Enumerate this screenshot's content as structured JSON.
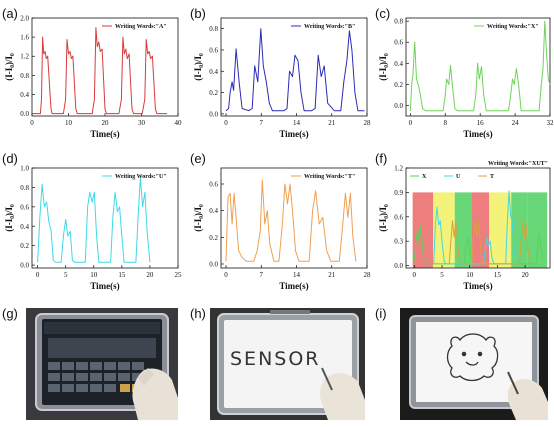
{
  "panel_labels": [
    "(a)",
    "(b)",
    "(c)",
    "(d)",
    "(e)",
    "(f)",
    "(g)",
    "(h)",
    "(i)"
  ],
  "photo_h_text": "SENSOR",
  "chart_data": [
    {
      "type": "line",
      "panel": "(a)",
      "color": "#d93a3a",
      "xlabel": "Time(s)",
      "ylabel": "(I-I₀)/I₀",
      "xlim": [
        0,
        40
      ],
      "ylim": [
        -0.05,
        2.0
      ],
      "xticks": [
        "0",
        "10",
        "20",
        "30",
        "40"
      ],
      "xtick_values": [
        0,
        10,
        20,
        30,
        40
      ],
      "yticks": [
        "0.0",
        "0.4",
        "0.8",
        "1.2",
        "1.6",
        "2.0"
      ],
      "ytick_values": [
        0,
        0.4,
        0.8,
        1.2,
        1.6,
        2.0
      ],
      "series": [
        {
          "name": "Writing Words:\"A\"",
          "x": [
            0,
            2.3,
            2.6,
            2.9,
            3.2,
            3.6,
            3.9,
            4.3,
            5.2,
            5.5,
            8.6,
            9.2,
            9.6,
            10.0,
            10.4,
            10.8,
            11.2,
            12.0,
            12.4,
            16.5,
            17.1,
            17.5,
            17.9,
            18.3,
            18.7,
            19.2,
            20.0,
            20.4,
            23.8,
            24.5,
            24.9,
            25.3,
            25.7,
            26.1,
            26.6,
            27.4,
            27.8,
            30.2,
            30.9,
            31.3,
            31.7,
            32.1,
            32.5,
            33.0,
            33.8,
            34.2,
            37
          ],
          "y": [
            0,
            0,
            0.3,
            1.6,
            1.25,
            1.3,
            1.15,
            1.2,
            0.1,
            0,
            0,
            0.3,
            1.55,
            1.25,
            1.3,
            1.15,
            1.2,
            0.1,
            0,
            0,
            0.3,
            1.8,
            1.4,
            1.5,
            1.3,
            1.35,
            0.1,
            0,
            0,
            0.3,
            1.6,
            1.25,
            1.35,
            1.15,
            1.25,
            0.1,
            0,
            0,
            0.3,
            1.55,
            1.25,
            1.3,
            1.15,
            1.2,
            0.1,
            0,
            0
          ]
        }
      ]
    },
    {
      "type": "line",
      "panel": "(b)",
      "color": "#2b2bb5",
      "xlabel": "Time(s)",
      "ylabel": "(I-I₀)/I₀",
      "xlim": [
        -1,
        28
      ],
      "ylim": [
        -0.02,
        0.9
      ],
      "xticks": [
        "0",
        "7",
        "14",
        "21",
        "28"
      ],
      "xtick_values": [
        0,
        7,
        14,
        21,
        28
      ],
      "yticks": [
        "0.0",
        "0.2",
        "0.4",
        "0.6",
        "0.8"
      ],
      "ytick_values": [
        0,
        0.2,
        0.4,
        0.6,
        0.8
      ],
      "series": [
        {
          "name": "Writing Words:\"B\"",
          "x": [
            0,
            0.5,
            0.8,
            1.2,
            1.5,
            2.0,
            2.6,
            3.2,
            4.5,
            5.2,
            5.7,
            6.3,
            6.9,
            7.4,
            8.0,
            8.6,
            9.2,
            11.5,
            12.1,
            12.6,
            13.2,
            13.7,
            14.3,
            14.9,
            15.5,
            17.0,
            17.7,
            18.3,
            18.9,
            19.5,
            20.2,
            21.5,
            22.8,
            23.4,
            24.0,
            24.5,
            25.0,
            25.6,
            26.2,
            27.5
          ],
          "y": [
            0.03,
            0.05,
            0.2,
            0.3,
            0.22,
            0.61,
            0.3,
            0.05,
            0.03,
            0.05,
            0.45,
            0.3,
            0.8,
            0.45,
            0.3,
            0.1,
            0.03,
            0.03,
            0.05,
            0.4,
            0.35,
            0.55,
            0.5,
            0.2,
            0.03,
            0.03,
            0.05,
            0.55,
            0.35,
            0.45,
            0.1,
            0.03,
            0.03,
            0.3,
            0.5,
            0.78,
            0.6,
            0.2,
            0.03,
            0.03
          ]
        }
      ]
    },
    {
      "type": "line",
      "panel": "(c)",
      "color": "#6fd35a",
      "xlabel": "Time(s)",
      "ylabel": "(I-I₀)/I₀",
      "xlim": [
        -1,
        32
      ],
      "ylim": [
        -0.1,
        0.83
      ],
      "xticks": [
        "0",
        "8",
        "16",
        "24",
        "32"
      ],
      "xtick_values": [
        0,
        8,
        16,
        24,
        32
      ],
      "yticks": [
        "0.0",
        "0.2",
        "0.4",
        "0.6",
        "0.8"
      ],
      "ytick_values": [
        0,
        0.2,
        0.4,
        0.6,
        0.8
      ],
      "series": [
        {
          "name": "Writing Words:\"X\"",
          "x": [
            0,
            0.3,
            0.6,
            1.0,
            1.4,
            1.8,
            2.3,
            2.8,
            3.5,
            7.5,
            8.0,
            8.3,
            8.8,
            9.2,
            9.6,
            10.2,
            10.8,
            14.5,
            15.0,
            15.4,
            15.8,
            16.3,
            16.8,
            17.4,
            22.5,
            23.0,
            23.4,
            23.8,
            24.3,
            24.8,
            25.4,
            29.5,
            30.0,
            30.4,
            30.8,
            31.2,
            31.6,
            32
          ],
          "y": [
            -0.05,
            0.2,
            0.3,
            0.6,
            0.25,
            0.2,
            0.1,
            -0.03,
            -0.05,
            -0.05,
            0.1,
            0.25,
            0.2,
            0.38,
            0.2,
            -0.03,
            -0.05,
            -0.05,
            0.1,
            0.4,
            0.25,
            0.37,
            0.1,
            -0.05,
            -0.05,
            0.1,
            0.25,
            0.2,
            0.35,
            0.2,
            -0.05,
            -0.05,
            0.2,
            0.35,
            0.8,
            0.5,
            0.25,
            0.2
          ]
        }
      ]
    },
    {
      "type": "line",
      "panel": "(d)",
      "color": "#3fd9e6",
      "xlabel": "Time(s)",
      "ylabel": "(I-I₀)/I₀",
      "xlim": [
        -1,
        25
      ],
      "ylim": [
        -0.03,
        1.0
      ],
      "xticks": [
        "0",
        "5",
        "10",
        "15",
        "20",
        "25"
      ],
      "xtick_values": [
        0,
        5,
        10,
        15,
        20,
        25
      ],
      "yticks": [
        "0.0",
        "0.2",
        "0.4",
        "0.6",
        "0.8",
        "1.0"
      ],
      "ytick_values": [
        0,
        0.2,
        0.4,
        0.6,
        0.8,
        1.0
      ],
      "series": [
        {
          "name": "Writing Words:\"U\"",
          "x": [
            0,
            0.4,
            0.8,
            1.2,
            1.6,
            2.0,
            2.4,
            2.8,
            3.2,
            4.2,
            4.6,
            5.0,
            5.4,
            5.8,
            6.2,
            6.6,
            8.5,
            8.9,
            9.3,
            9.7,
            10.1,
            10.5,
            10.9,
            13.0,
            13.4,
            13.8,
            14.2,
            14.6,
            15.0,
            15.4,
            17.5,
            17.9,
            18.3,
            18.7,
            19.1,
            19.5,
            20.0
          ],
          "y": [
            0.03,
            0.5,
            0.83,
            0.6,
            0.65,
            0.45,
            0.35,
            0.05,
            0.03,
            0.03,
            0.3,
            0.47,
            0.3,
            0.35,
            0.05,
            0.03,
            0.03,
            0.6,
            0.75,
            0.65,
            0.75,
            0.3,
            0.03,
            0.03,
            0.5,
            0.75,
            0.55,
            0.6,
            0.3,
            0.03,
            0.03,
            0.5,
            0.9,
            0.6,
            0.75,
            0.35,
            0.03
          ]
        }
      ]
    },
    {
      "type": "line",
      "panel": "(e)",
      "color": "#f0a050",
      "xlabel": "Time(s)",
      "ylabel": "(I-I₀)/I₀",
      "xlim": [
        -1,
        28
      ],
      "ylim": [
        -0.03,
        0.72
      ],
      "xticks": [
        "0",
        "7",
        "14",
        "21",
        "28"
      ],
      "xtick_values": [
        0,
        7,
        14,
        21,
        28
      ],
      "yticks": [
        "0.0",
        "0.2",
        "0.4",
        "0.6"
      ],
      "ytick_values": [
        0,
        0.2,
        0.4,
        0.6
      ],
      "series": [
        {
          "name": "Writing Words:\"T\"",
          "x": [
            0,
            0.4,
            0.8,
            1.2,
            1.6,
            2.0,
            2.5,
            3.2,
            4.0,
            5.5,
            6.2,
            6.8,
            7.2,
            7.7,
            8.2,
            8.7,
            9.5,
            10.5,
            11.2,
            11.7,
            12.2,
            12.7,
            13.2,
            13.8,
            14.5,
            16.5,
            17.2,
            17.8,
            18.5,
            19.2,
            20.0,
            20.8,
            22.5,
            23.2,
            23.7,
            24.2,
            24.7,
            25.2,
            25.8
          ],
          "y": [
            0.02,
            0.5,
            0.53,
            0.3,
            0.53,
            0.35,
            0.1,
            0.05,
            0.02,
            0.02,
            0.1,
            0.25,
            0.63,
            0.3,
            0.4,
            0.15,
            0.02,
            0.02,
            0.3,
            0.6,
            0.45,
            0.6,
            0.4,
            0.1,
            0.02,
            0.02,
            0.4,
            0.55,
            0.3,
            0.35,
            0.1,
            0.02,
            0.02,
            0.3,
            0.53,
            0.35,
            0.53,
            0.2,
            0.02
          ]
        }
      ]
    },
    {
      "type": "line",
      "panel": "(f)",
      "title": "Writing Words:\"XUT\"",
      "xlabel": "Time(s)",
      "ylabel": "(I-I₀)/I₀",
      "xlim": [
        -1.5,
        24.5
      ],
      "ylim": [
        -0.03,
        1.2
      ],
      "xticks": [
        "0",
        "5",
        "10",
        "15",
        "20"
      ],
      "xtick_values": [
        0,
        5,
        10,
        15,
        20
      ],
      "yticks": [
        "0.0",
        "0.3",
        "0.6",
        "0.9",
        "1.2"
      ],
      "ytick_values": [
        0,
        0.3,
        0.6,
        0.9,
        1.2
      ],
      "bands": [
        {
          "from": -0.3,
          "to": 3.4,
          "color": "#ec7070"
        },
        {
          "from": 3.4,
          "to": 7.3,
          "color": "#f2f26a"
        },
        {
          "from": 7.3,
          "to": 10.3,
          "color": "#58d368"
        },
        {
          "from": 10.3,
          "to": 13.5,
          "color": "#ec7070"
        },
        {
          "from": 13.5,
          "to": 17.5,
          "color": "#f2f26a"
        },
        {
          "from": 17.5,
          "to": 20.5,
          "color": "#58d368"
        },
        {
          "from": 20.5,
          "to": 24.0,
          "color": "#58d368"
        }
      ],
      "band_top": 0.9,
      "series": [
        {
          "name": "X",
          "color": "#5ad35a",
          "x": [
            0,
            0.3,
            0.6,
            0.9,
            1.2,
            1.5,
            1.8,
            2.2,
            2.6,
            9.0,
            9.3,
            9.6,
            9.9,
            10.2,
            10.6,
            22.0,
            22.3,
            22.6,
            22.9,
            23.3
          ],
          "y": [
            0.05,
            0.3,
            0.45,
            0.28,
            0.5,
            0.2,
            0.05,
            0.03,
            0.02,
            0.02,
            0.25,
            0.35,
            0.25,
            0.1,
            0.02,
            0.02,
            0.25,
            0.4,
            0.2,
            0.05
          ]
        },
        {
          "name": "U",
          "color": "#3fd9e6",
          "x": [
            3.5,
            3.8,
            4.1,
            4.4,
            4.7,
            5.0,
            5.4,
            5.8,
            12.5,
            12.8,
            13.1,
            13.4,
            13.7,
            14.0,
            14.4,
            16.5,
            16.8,
            17.1,
            17.4,
            17.7,
            18.0,
            18.4
          ],
          "y": [
            0.02,
            0.5,
            0.72,
            0.5,
            0.55,
            0.3,
            0.05,
            0.02,
            0.02,
            0.2,
            0.35,
            0.25,
            0.3,
            0.1,
            0.02,
            0.02,
            0.55,
            0.92,
            0.6,
            0.55,
            0.2,
            0.02
          ]
        },
        {
          "name": "T",
          "color": "#d9a040",
          "x": [
            6.3,
            6.6,
            6.9,
            7.2,
            7.5,
            7.8,
            8.1,
            8.5,
            10.4,
            10.7,
            11.0,
            11.3,
            11.6,
            11.9,
            12.3,
            19.0,
            19.3,
            19.6,
            19.9,
            20.2,
            20.5,
            20.9
          ],
          "y": [
            0.02,
            0.3,
            0.55,
            0.35,
            0.55,
            0.3,
            0.05,
            0.02,
            0.02,
            0.35,
            0.55,
            0.35,
            0.55,
            0.25,
            0.02,
            0.02,
            0.3,
            0.55,
            0.35,
            0.5,
            0.2,
            0.02
          ]
        }
      ]
    }
  ]
}
